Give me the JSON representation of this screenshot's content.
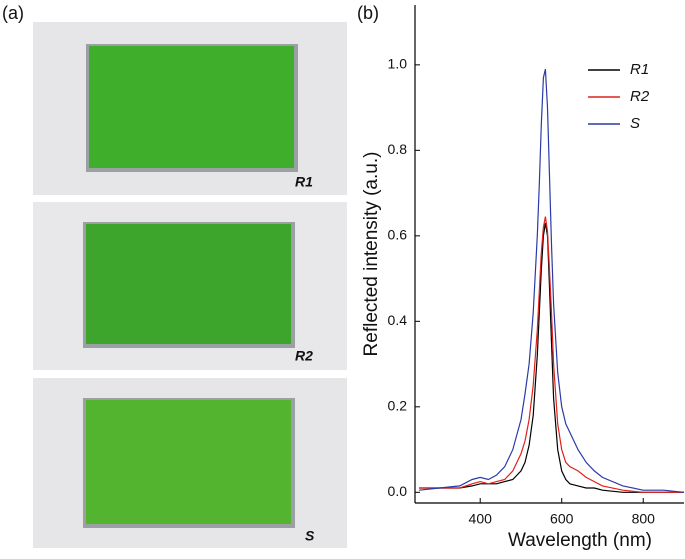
{
  "panel_labels": [
    "(a)",
    "(b)"
  ],
  "photos": {
    "labels": [
      "R1",
      "R2",
      "S"
    ]
  },
  "chart_data": {
    "type": "line",
    "xlabel": "Wavelength (nm)",
    "ylabel": "Reflected intensity (a.u.)",
    "x": [
      250,
      300,
      350,
      380,
      400,
      420,
      440,
      460,
      480,
      500,
      510,
      520,
      530,
      540,
      545,
      550,
      555,
      560,
      565,
      570,
      575,
      580,
      590,
      600,
      610,
      620,
      640,
      660,
      680,
      700,
      750,
      800,
      850,
      900
    ],
    "series": [
      {
        "name": "R1",
        "color": "#000000",
        "values": [
          0.01,
          0.01,
          0.01,
          0.015,
          0.02,
          0.02,
          0.02,
          0.025,
          0.03,
          0.05,
          0.07,
          0.11,
          0.18,
          0.32,
          0.42,
          0.52,
          0.6,
          0.63,
          0.6,
          0.48,
          0.35,
          0.22,
          0.1,
          0.05,
          0.03,
          0.02,
          0.015,
          0.01,
          0.01,
          0.005,
          0,
          0,
          0,
          0
        ]
      },
      {
        "name": "R2",
        "color": "#e0201b",
        "values": [
          0.01,
          0.01,
          0.01,
          0.02,
          0.025,
          0.02,
          0.025,
          0.03,
          0.05,
          0.09,
          0.12,
          0.17,
          0.25,
          0.38,
          0.47,
          0.56,
          0.62,
          0.645,
          0.61,
          0.52,
          0.42,
          0.3,
          0.16,
          0.1,
          0.07,
          0.06,
          0.05,
          0.035,
          0.025,
          0.015,
          0.005,
          0,
          0,
          0
        ]
      },
      {
        "name": "S",
        "color": "#2b3aa8",
        "values": [
          0.005,
          0.01,
          0.015,
          0.03,
          0.035,
          0.03,
          0.04,
          0.06,
          0.1,
          0.17,
          0.23,
          0.3,
          0.42,
          0.6,
          0.72,
          0.86,
          0.97,
          0.99,
          0.9,
          0.74,
          0.58,
          0.44,
          0.28,
          0.2,
          0.16,
          0.14,
          0.1,
          0.07,
          0.05,
          0.035,
          0.015,
          0.005,
          0.005,
          0
        ]
      }
    ],
    "xlim": [
      240,
      900
    ],
    "xticks": [
      400,
      600,
      800
    ],
    "ylim": [
      -0.025,
      1.14
    ],
    "yticks": [
      {
        "value": 0,
        "label": "0.0"
      },
      0.2,
      0.4,
      0.6,
      0.8,
      {
        "value": 1,
        "label": "1.0"
      }
    ],
    "legend": "upper-right"
  }
}
